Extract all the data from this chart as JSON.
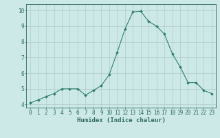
{
  "x": [
    0,
    1,
    2,
    3,
    4,
    5,
    6,
    7,
    8,
    9,
    10,
    11,
    12,
    13,
    14,
    15,
    16,
    17,
    18,
    19,
    20,
    21,
    22,
    23
  ],
  "y": [
    4.1,
    4.3,
    4.5,
    4.7,
    5.0,
    5.0,
    5.0,
    4.6,
    4.9,
    5.2,
    5.9,
    7.3,
    8.8,
    9.9,
    9.95,
    9.3,
    9.0,
    8.5,
    7.25,
    6.4,
    5.4,
    5.4,
    4.9,
    4.7
  ],
  "line_color": "#2e7d6e",
  "marker": "D",
  "marker_size": 2,
  "bg_color": "#cce9e7",
  "grid_color": "#b0ccca",
  "xlabel": "Humidex (Indice chaleur)",
  "xlim": [
    -0.5,
    23.5
  ],
  "ylim": [
    3.8,
    10.4
  ],
  "yticks": [
    4,
    5,
    6,
    7,
    8,
    9,
    10
  ],
  "xticks": [
    0,
    1,
    2,
    3,
    4,
    5,
    6,
    7,
    8,
    9,
    10,
    11,
    12,
    13,
    14,
    15,
    16,
    17,
    18,
    19,
    20,
    21,
    22,
    23
  ],
  "xlabel_fontsize": 6.5,
  "tick_fontsize": 5.5,
  "tick_color": "#2e6b5e",
  "axis_color": "#2e6b5e",
  "linewidth": 0.8
}
